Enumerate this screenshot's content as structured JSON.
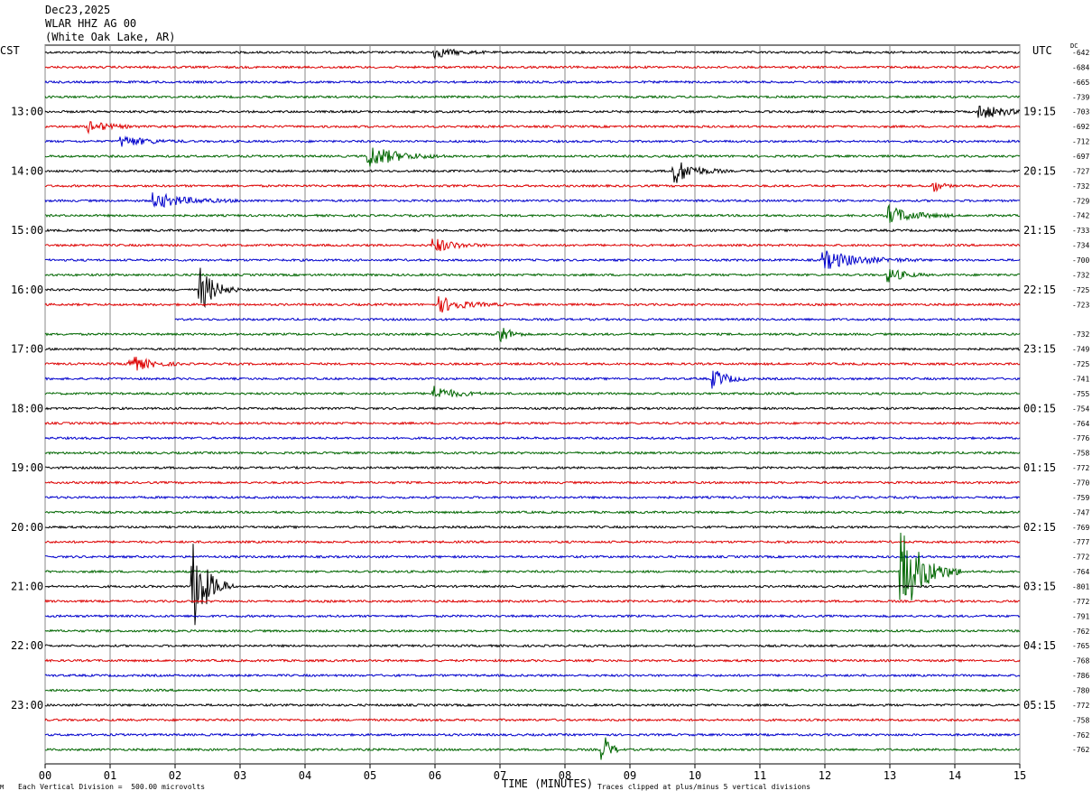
{
  "header": {
    "date": "Dec23,2025",
    "station": "WLAR HHZ AG 00",
    "location": "(White Oak Lake, AR)"
  },
  "left_zone": "CST",
  "right_zone": "UTC",
  "dc_label": "DC",
  "footer": {
    "scale": "Each Vertical Division =  500.00 microvolts",
    "clip": "Traces clipped at plus/minus 5 vertical divisions",
    "corner_mark": "M"
  },
  "colors": {
    "trace_cycle": [
      "#000000",
      "#dd0000",
      "#0000cc",
      "#006600"
    ],
    "grid": "#888888"
  },
  "chart_data": {
    "type": "line",
    "title": "WLAR HHZ AG 00",
    "xlabel": "TIME (MINUTES)",
    "ylabel": "",
    "xlim": [
      0,
      15
    ],
    "x_ticks": [
      "00",
      "01",
      "02",
      "03",
      "04",
      "05",
      "06",
      "07",
      "08",
      "09",
      "10",
      "11",
      "12",
      "13",
      "14",
      "15"
    ],
    "hour_labels_cst": [
      "13:00",
      "14:00",
      "15:00",
      "16:00",
      "17:00",
      "18:00",
      "19:00",
      "20:00",
      "21:00",
      "22:00",
      "23:00"
    ],
    "hour_labels_utc": [
      "19:15",
      "20:15",
      "21:15",
      "22:15",
      "23:15",
      "00:15",
      "01:15",
      "02:15",
      "03:15",
      "04:15",
      "05:15"
    ],
    "dc_offsets": [
      "-642",
      "-684",
      "-665",
      "-739",
      "-703",
      "-692",
      "-712",
      "-697",
      "-727",
      "-732",
      "-729",
      "-742",
      "-733",
      "-734",
      "-700",
      "-732",
      "-725",
      "-723",
      "",
      "-732",
      "-749",
      "-725",
      "-741",
      "-755",
      "-754",
      "-764",
      "-776",
      "-758",
      "-772",
      "-770",
      "-759",
      "-747",
      "-769",
      "-777",
      "-772",
      "-764",
      "-801",
      "-772",
      "-791",
      "-762",
      "-765",
      "-768",
      "-786",
      "-780",
      "-772",
      "-758",
      "-762",
      "-762"
    ],
    "events": [
      {
        "trace": 0,
        "minute": 6.0,
        "amp": 1.5,
        "dur": 0.8
      },
      {
        "trace": 4,
        "minute": 14.4,
        "amp": 2.0,
        "dur": 1.0
      },
      {
        "trace": 5,
        "minute": 0.7,
        "amp": 1.5,
        "dur": 0.8
      },
      {
        "trace": 6,
        "minute": 1.2,
        "amp": 1.5,
        "dur": 1.0
      },
      {
        "trace": 7,
        "minute": 5.0,
        "amp": 3.0,
        "dur": 1.2
      },
      {
        "trace": 8,
        "minute": 9.7,
        "amp": 3.5,
        "dur": 0.8
      },
      {
        "trace": 9,
        "minute": 13.7,
        "amp": 1.5,
        "dur": 0.3
      },
      {
        "trace": 10,
        "minute": 1.7,
        "amp": 2.0,
        "dur": 1.4
      },
      {
        "trace": 11,
        "minute": 13.0,
        "amp": 2.5,
        "dur": 1.0
      },
      {
        "trace": 13,
        "minute": 6.0,
        "amp": 2.0,
        "dur": 0.8
      },
      {
        "trace": 14,
        "minute": 12.0,
        "amp": 2.5,
        "dur": 1.5
      },
      {
        "trace": 15,
        "minute": 13.0,
        "amp": 2.0,
        "dur": 0.6
      },
      {
        "trace": 16,
        "minute": 2.4,
        "amp": 6.0,
        "dur": 0.6
      },
      {
        "trace": 17,
        "minute": 6.1,
        "amp": 2.0,
        "dur": 1.0
      },
      {
        "trace": 19,
        "minute": 7.0,
        "amp": 3.0,
        "dur": 0.4
      },
      {
        "trace": 21,
        "minute": 1.3,
        "amp": 2.5,
        "dur": 0.8
      },
      {
        "trace": 22,
        "minute": 10.3,
        "amp": 2.5,
        "dur": 0.6
      },
      {
        "trace": 23,
        "minute": 6.0,
        "amp": 2.0,
        "dur": 0.8
      },
      {
        "trace": 36,
        "minute": 2.3,
        "amp": 12.0,
        "dur": 0.6
      },
      {
        "trace": 35,
        "minute": 13.2,
        "amp": 12.0,
        "dur": 0.9
      },
      {
        "trace": 47,
        "minute": 8.6,
        "amp": 4.0,
        "dur": 0.3
      }
    ],
    "gaps": [
      {
        "trace": 18,
        "from": 0,
        "to": 2.0
      }
    ]
  }
}
